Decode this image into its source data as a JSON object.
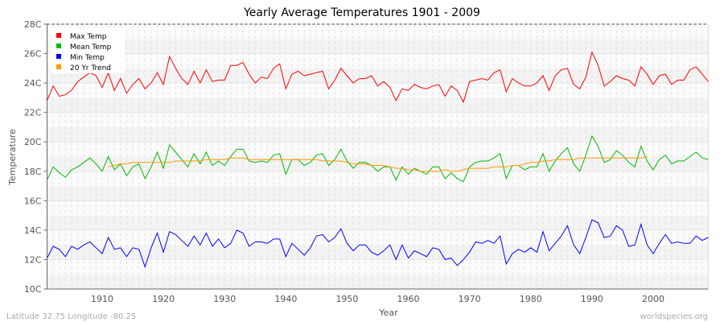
{
  "chart_data": {
    "type": "line",
    "title": "Yearly Average Temperatures 1901 - 2009",
    "xlabel": "Year",
    "ylabel": "Temperature",
    "xlim": [
      1901,
      2009
    ],
    "ylim": [
      10,
      28
    ],
    "yticks": [
      "10C",
      "12C",
      "14C",
      "16C",
      "18C",
      "20C",
      "22C",
      "24C",
      "26C",
      "28C"
    ],
    "xticks": [
      "1910",
      "1920",
      "1930",
      "1940",
      "1950",
      "1960",
      "1970",
      "1980",
      "1990",
      "2000"
    ],
    "legend_position": "top-left",
    "start_year": 1901,
    "series": [
      {
        "name": "Max Temp",
        "color": "#ff0000",
        "start": 1901,
        "values": [
          22.8,
          23.8,
          23.1,
          23.2,
          23.5,
          24.1,
          24.4,
          24.7,
          24.5,
          23.7,
          24.7,
          23.5,
          24.3,
          23.3,
          23.9,
          24.3,
          23.6,
          24.0,
          24.7,
          23.9,
          25.8,
          25.0,
          24.3,
          23.9,
          24.8,
          24.0,
          24.9,
          24.1,
          24.2,
          24.2,
          25.2,
          25.2,
          25.4,
          24.6,
          24.0,
          24.4,
          24.3,
          25.0,
          25.3,
          23.6,
          24.6,
          24.8,
          24.5,
          24.6,
          24.7,
          24.8,
          23.6,
          24.2,
          25.0,
          24.5,
          24.0,
          24.3,
          24.3,
          24.5,
          23.8,
          24.1,
          23.7,
          22.8,
          23.6,
          23.5,
          23.9,
          23.7,
          23.6,
          23.8,
          23.9,
          23.1,
          23.8,
          23.5,
          22.7,
          24.1,
          24.2,
          24.3,
          24.2,
          24.7,
          24.9,
          23.4,
          24.3,
          24.0,
          23.8,
          23.8,
          24.0,
          24.5,
          23.5,
          24.5,
          24.9,
          25.0,
          23.9,
          23.6,
          24.4,
          26.1,
          25.2,
          23.8,
          24.1,
          24.5,
          24.3,
          24.2,
          23.8,
          25.1,
          24.6,
          23.9,
          24.5,
          24.6,
          23.9,
          24.2,
          24.2,
          24.9,
          25.1,
          24.6,
          24.1
        ]
      },
      {
        "name": "Mean Temp",
        "color": "#00bb00",
        "start": 1901,
        "values": [
          17.4,
          18.3,
          17.9,
          17.6,
          18.1,
          18.3,
          18.6,
          18.9,
          18.5,
          18.0,
          19.0,
          18.1,
          18.5,
          17.7,
          18.3,
          18.5,
          17.5,
          18.3,
          19.3,
          18.2,
          19.8,
          19.3,
          18.8,
          18.3,
          19.2,
          18.5,
          19.3,
          18.4,
          18.7,
          18.4,
          19.0,
          19.5,
          19.5,
          18.7,
          18.6,
          18.7,
          18.6,
          19.1,
          19.2,
          17.8,
          18.8,
          18.8,
          18.4,
          18.6,
          19.1,
          19.2,
          18.4,
          18.8,
          19.5,
          18.7,
          18.2,
          18.6,
          18.6,
          18.4,
          18.0,
          18.3,
          18.3,
          17.4,
          18.3,
          17.8,
          18.2,
          18.0,
          17.8,
          18.3,
          18.3,
          17.5,
          17.9,
          17.5,
          17.3,
          18.3,
          18.6,
          18.7,
          18.7,
          18.9,
          19.2,
          17.5,
          18.4,
          18.4,
          18.1,
          18.3,
          18.3,
          19.2,
          18.0,
          18.7,
          19.2,
          19.6,
          18.5,
          18.0,
          19.1,
          20.4,
          19.7,
          18.6,
          18.8,
          19.4,
          19.1,
          18.6,
          18.3,
          19.7,
          18.7,
          18.1,
          18.8,
          19.1,
          18.5,
          18.7,
          18.7,
          19.0,
          19.3,
          18.9,
          18.8
        ]
      },
      {
        "name": "Min Temp",
        "color": "#0000ff",
        "start": 1901,
        "values": [
          12.1,
          12.9,
          12.7,
          12.2,
          12.9,
          12.7,
          13.0,
          13.2,
          12.8,
          12.4,
          13.5,
          12.7,
          12.8,
          12.2,
          12.8,
          12.7,
          11.5,
          12.8,
          13.8,
          12.5,
          13.9,
          13.7,
          13.3,
          12.9,
          13.6,
          13.0,
          13.8,
          12.9,
          13.4,
          12.8,
          13.1,
          14.0,
          13.8,
          12.9,
          13.2,
          13.2,
          13.1,
          13.4,
          13.4,
          12.2,
          13.1,
          12.7,
          12.3,
          12.8,
          13.6,
          13.7,
          13.2,
          13.5,
          14.1,
          13.1,
          12.6,
          13.0,
          13.0,
          12.5,
          12.3,
          12.6,
          13.0,
          12.0,
          13.0,
          12.1,
          12.6,
          12.4,
          12.2,
          12.8,
          12.7,
          12.0,
          12.1,
          11.6,
          12.0,
          12.5,
          13.2,
          13.1,
          13.3,
          13.1,
          13.6,
          11.7,
          12.4,
          12.7,
          12.5,
          12.8,
          12.5,
          13.9,
          12.6,
          13.1,
          13.6,
          14.3,
          13.0,
          12.4,
          13.5,
          14.7,
          14.5,
          13.5,
          13.6,
          14.3,
          14.0,
          12.9,
          13.0,
          14.4,
          13.0,
          12.4,
          13.1,
          13.7,
          13.1,
          13.2,
          13.1,
          13.1,
          13.6,
          13.3,
          13.5
        ]
      },
      {
        "name": "20 Yr Trend",
        "color": "#ff9900",
        "start": 1911,
        "values": [
          18.3,
          18.4,
          18.5,
          18.5,
          18.6,
          18.6,
          18.6,
          18.6,
          18.6,
          18.6,
          18.6,
          18.7,
          18.7,
          18.7,
          18.7,
          18.7,
          18.8,
          18.8,
          18.8,
          18.8,
          18.9,
          18.9,
          18.9,
          18.8,
          18.8,
          18.8,
          18.8,
          18.8,
          18.8,
          18.8,
          18.8,
          18.8,
          18.8,
          18.8,
          18.8,
          18.7,
          18.7,
          18.7,
          18.7,
          18.6,
          18.5,
          18.5,
          18.5,
          18.4,
          18.4,
          18.4,
          18.3,
          18.2,
          18.2,
          18.1,
          18.1,
          18.0,
          18.0,
          18.0,
          18.0,
          18.1,
          18.0,
          18.0,
          18.1,
          18.2,
          18.2,
          18.2,
          18.2,
          18.3,
          18.3,
          18.3,
          18.4,
          18.4,
          18.5,
          18.6,
          18.6,
          18.7,
          18.7,
          18.8,
          18.8,
          18.8,
          18.8,
          18.9,
          18.9,
          18.9,
          18.9,
          18.9,
          18.9,
          18.9,
          18.9,
          18.9,
          18.9,
          18.9,
          19.0
        ]
      }
    ]
  },
  "footer": {
    "location": "Latitude 32.75 Longitude -80.25",
    "credit": "worldspecies.org"
  }
}
